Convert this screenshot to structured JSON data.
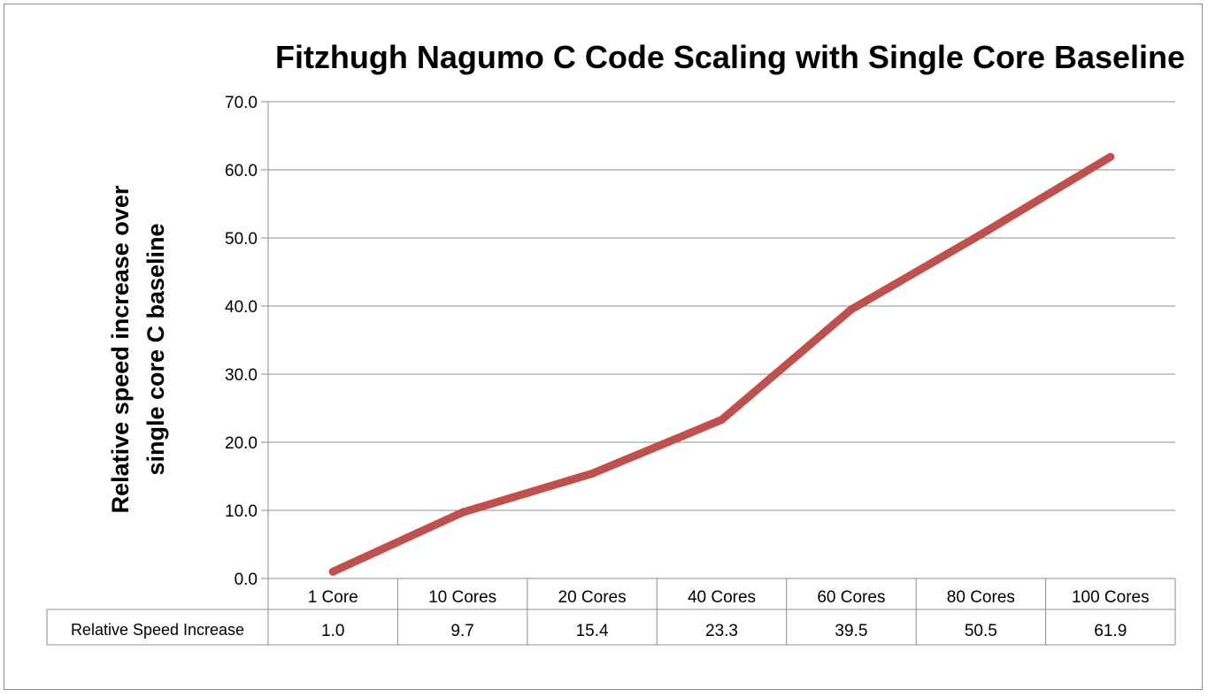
{
  "chart_data": {
    "type": "line",
    "title": "Fitzhugh Nagumo C Code Scaling with Single Core Baseline",
    "ylabel_lines": [
      "Relative speed increase over",
      "single core C baseline"
    ],
    "xlabel": "",
    "categories": [
      "1 Core",
      "10 Cores",
      "20 Cores",
      "40 Cores",
      "60 Cores",
      "80 Cores",
      "100 Cores"
    ],
    "series": [
      {
        "name": "Relative Speed Increase",
        "values": [
          1.0,
          9.7,
          15.4,
          23.3,
          39.5,
          50.5,
          61.9
        ],
        "value_labels": [
          "1.0",
          "9.7",
          "15.4",
          "23.3",
          "39.5",
          "50.5",
          "61.9"
        ],
        "color": "#c0504d"
      }
    ],
    "ylim": [
      0,
      70
    ],
    "yticks": [
      "0.0",
      "10.0",
      "20.0",
      "30.0",
      "40.0",
      "50.0",
      "60.0",
      "70.0"
    ],
    "grid": true,
    "legend": "data-table"
  }
}
